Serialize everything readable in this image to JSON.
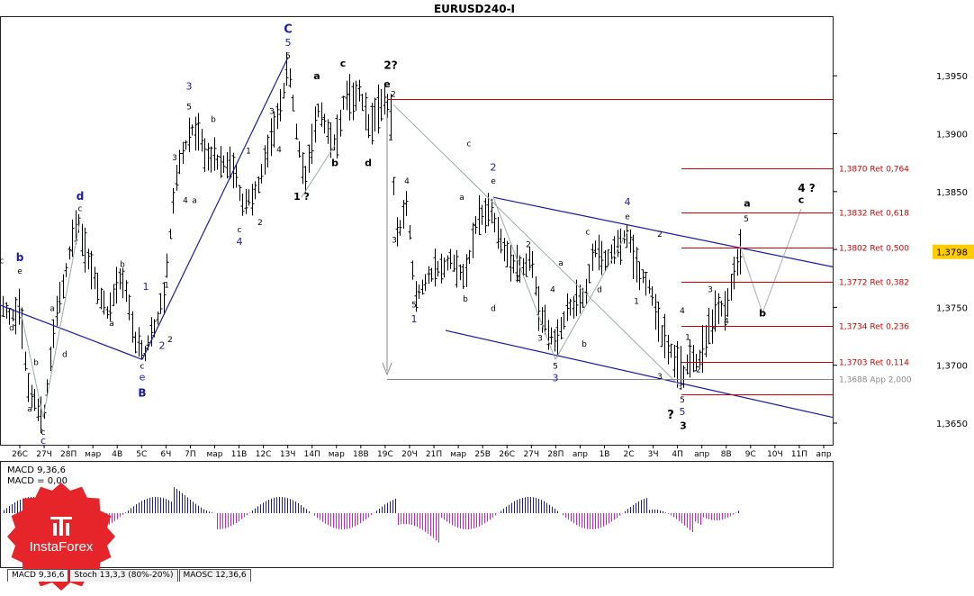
{
  "title": "EURUSD240-I",
  "chart_data": {
    "type": "candlestick",
    "title": "EURUSD240-I",
    "ylim": [
      1.363,
      1.3995
    ],
    "y_ticks": [
      1.365,
      1.37,
      1.375,
      1.38,
      1.385,
      1.39,
      1.395
    ],
    "y_tick_labels": [
      "1,3650",
      "1,3700",
      "1,3750",
      "1,3800",
      "1,3850",
      "1,3900",
      "1,3950"
    ],
    "x_labels": [
      "26С",
      "27Ч",
      "28П",
      "мар",
      "4В",
      "5С",
      "6Ч",
      "7П",
      "мар",
      "11В",
      "12С",
      "13Ч",
      "14П",
      "мар",
      "18В",
      "19С",
      "20Ч",
      "21П",
      "мар",
      "25В",
      "26С",
      "27Ч",
      "28П",
      "апр",
      "1В",
      "2С",
      "3Ч",
      "4П",
      "апр",
      "8В",
      "9С",
      "10Ч",
      "11П",
      "апр"
    ],
    "current_price": 1.3798,
    "current_price_label": "1,3798",
    "fib_levels": [
      {
        "price": 1.393,
        "label": ""
      },
      {
        "price": 1.387,
        "label": "1,3870 Ret 0,764"
      },
      {
        "price": 1.3832,
        "label": "1,3832 Ret 0,618"
      },
      {
        "price": 1.3802,
        "label": "1,3802 Ret 0,500"
      },
      {
        "price": 1.3772,
        "label": "1,3772 Ret 0,382"
      },
      {
        "price": 1.3734,
        "label": "1,3734 Ret 0,236"
      },
      {
        "price": 1.3703,
        "label": "1,3703 Ret 0,114"
      },
      {
        "price": 1.3675,
        "label": ""
      }
    ],
    "app_level": {
      "price": 1.3688,
      "label": "1,3688 App 2,000"
    },
    "wave_labels": [
      {
        "t": "C",
        "x": 320,
        "p": 1.3987,
        "c": "#1a1aa6",
        "s": 13,
        "b": true
      },
      {
        "t": "5",
        "x": 320,
        "p": 1.3976,
        "c": "#1a1aa6",
        "s": 11
      },
      {
        "t": "5",
        "x": 320,
        "p": 1.3965,
        "c": "#000",
        "s": 9
      },
      {
        "t": "3",
        "x": 210,
        "p": 1.3938,
        "c": "#1a1aa6",
        "s": 11
      },
      {
        "t": "5",
        "x": 210,
        "p": 1.3921,
        "c": "#000",
        "s": 9
      },
      {
        "t": "b",
        "x": 237,
        "p": 1.391,
        "c": "#000",
        "s": 9
      },
      {
        "t": "3",
        "x": 194,
        "p": 1.3877,
        "c": "#000",
        "s": 9
      },
      {
        "t": "1",
        "x": 276,
        "p": 1.3883,
        "c": "#000",
        "s": 9
      },
      {
        "t": "3",
        "x": 302,
        "p": 1.3917,
        "c": "#000",
        "s": 9
      },
      {
        "t": "4",
        "x": 310,
        "p": 1.3884,
        "c": "#000",
        "s": 9
      },
      {
        "t": "a",
        "x": 352,
        "p": 1.3947,
        "c": "#000",
        "s": 11,
        "b": true
      },
      {
        "t": "c",
        "x": 381,
        "p": 1.3958,
        "c": "#000",
        "s": 11,
        "b": true
      },
      {
        "t": "b",
        "x": 372,
        "p": 1.3872,
        "c": "#000",
        "s": 11,
        "b": true
      },
      {
        "t": "d",
        "x": 409,
        "p": 1.3872,
        "c": "#000",
        "s": 11,
        "b": true
      },
      {
        "t": "1 ?",
        "x": 335,
        "p": 1.3843,
        "c": "#000",
        "s": 11,
        "b": true
      },
      {
        "t": "2?",
        "x": 434,
        "p": 1.3956,
        "c": "#000",
        "s": 12,
        "b": true
      },
      {
        "t": "e",
        "x": 430,
        "p": 1.394,
        "c": "#000",
        "s": 11,
        "b": true
      },
      {
        "t": "2",
        "x": 437,
        "p": 1.3932,
        "c": "#000",
        "s": 9
      },
      {
        "t": "1",
        "x": 434,
        "p": 1.3894,
        "c": "#000",
        "s": 9
      },
      {
        "t": "4",
        "x": 452,
        "p": 1.3857,
        "c": "#000",
        "s": 9
      },
      {
        "t": "3",
        "x": 438,
        "p": 1.3806,
        "c": "#000",
        "s": 9
      },
      {
        "t": "5",
        "x": 460,
        "p": 1.375,
        "c": "#000",
        "s": 9
      },
      {
        "t": "1",
        "x": 460,
        "p": 1.3737,
        "c": "#1a1aa6",
        "s": 11
      },
      {
        "t": "b",
        "x": 517,
        "p": 1.3755,
        "c": "#000",
        "s": 9
      },
      {
        "t": "c",
        "x": 521,
        "p": 1.3889,
        "c": "#000",
        "s": 9
      },
      {
        "t": "a",
        "x": 513,
        "p": 1.3843,
        "c": "#000",
        "s": 9
      },
      {
        "t": "2",
        "x": 548,
        "p": 1.3868,
        "c": "#1a1aa6",
        "s": 11
      },
      {
        "t": "e",
        "x": 548,
        "p": 1.3857,
        "c": "#000",
        "s": 9
      },
      {
        "t": "d",
        "x": 548,
        "p": 1.3747,
        "c": "#000",
        "s": 9
      },
      {
        "t": "2",
        "x": 587,
        "p": 1.3802,
        "c": "#000",
        "s": 9
      },
      {
        "t": "1",
        "x": 575,
        "p": 1.3773,
        "c": "#000",
        "s": 9
      },
      {
        "t": "4",
        "x": 614,
        "p": 1.3763,
        "c": "#000",
        "s": 9
      },
      {
        "t": "a",
        "x": 623,
        "p": 1.3786,
        "c": "#000",
        "s": 9
      },
      {
        "t": "3",
        "x": 600,
        "p": 1.3721,
        "c": "#000",
        "s": 9
      },
      {
        "t": "5",
        "x": 617,
        "p": 1.3697,
        "c": "#000",
        "s": 9
      },
      {
        "t": "3",
        "x": 617,
        "p": 1.3686,
        "c": "#1a1aa6",
        "s": 11
      },
      {
        "t": "b",
        "x": 649,
        "p": 1.3716,
        "c": "#000",
        "s": 9
      },
      {
        "t": "c",
        "x": 653,
        "p": 1.3813,
        "c": "#000",
        "s": 9
      },
      {
        "t": "d",
        "x": 666,
        "p": 1.3763,
        "c": "#000",
        "s": 9
      },
      {
        "t": "4",
        "x": 697,
        "p": 1.3838,
        "c": "#1a1aa6",
        "s": 11
      },
      {
        "t": "e",
        "x": 697,
        "p": 1.3826,
        "c": "#000",
        "s": 9
      },
      {
        "t": "2",
        "x": 733,
        "p": 1.3811,
        "c": "#000",
        "s": 9
      },
      {
        "t": "1",
        "x": 707,
        "p": 1.3753,
        "c": "#000",
        "s": 9
      },
      {
        "t": "3",
        "x": 733,
        "p": 1.3688,
        "c": "#000",
        "s": 9
      },
      {
        "t": "4",
        "x": 758,
        "p": 1.3745,
        "c": "#000",
        "s": 9
      },
      {
        "t": "5",
        "x": 758,
        "p": 1.3668,
        "c": "#000",
        "s": 9
      },
      {
        "t": "5",
        "x": 758,
        "p": 1.3657,
        "c": "#1a1aa6",
        "s": 11
      },
      {
        "t": "3",
        "x": 759,
        "p": 1.3645,
        "c": "#000",
        "s": 11,
        "b": true
      },
      {
        "t": "?",
        "x": 745,
        "p": 1.3654,
        "c": "#000",
        "s": 13,
        "b": true
      },
      {
        "t": "1",
        "x": 764,
        "p": 1.3722,
        "c": "#000",
        "s": 9
      },
      {
        "t": "2",
        "x": 776,
        "p": 1.3694,
        "c": "#000",
        "s": 9
      },
      {
        "t": "3",
        "x": 789,
        "p": 1.3763,
        "c": "#000",
        "s": 9
      },
      {
        "t": "4",
        "x": 807,
        "p": 1.3736,
        "c": "#000",
        "s": 9
      },
      {
        "t": "a",
        "x": 830,
        "p": 1.3837,
        "c": "#000",
        "s": 11,
        "b": true
      },
      {
        "t": "5",
        "x": 829,
        "p": 1.3824,
        "c": "#000",
        "s": 9
      },
      {
        "t": "b",
        "x": 847,
        "p": 1.3742,
        "c": "#000",
        "s": 11,
        "b": true
      },
      {
        "t": "4 ?",
        "x": 896,
        "p": 1.385,
        "c": "#000",
        "s": 12,
        "b": true
      },
      {
        "t": "c",
        "x": 890,
        "p": 1.384,
        "c": "#000",
        "s": 11,
        "b": true
      },
      {
        "t": "d",
        "x": 89,
        "p": 1.3843,
        "c": "#1a1aa6",
        "s": 12,
        "b": true
      },
      {
        "t": "c",
        "x": 89,
        "p": 1.3833,
        "c": "#000",
        "s": 9
      },
      {
        "t": "b",
        "x": 136,
        "p": 1.3785,
        "c": "#000",
        "s": 9
      },
      {
        "t": "a",
        "x": 124,
        "p": 1.3734,
        "c": "#000",
        "s": 9
      },
      {
        "t": "a",
        "x": 58,
        "p": 1.3747,
        "c": "#000",
        "s": 9
      },
      {
        "t": "b",
        "x": 40,
        "p": 1.37,
        "c": "#000",
        "s": 9
      },
      {
        "t": "d",
        "x": 72,
        "p": 1.3707,
        "c": "#000",
        "s": 9
      },
      {
        "t": "a",
        "x": 33,
        "p": 1.366,
        "c": "#000",
        "s": 9
      },
      {
        "t": "c",
        "x": 48,
        "p": 1.364,
        "c": "#000",
        "s": 9
      },
      {
        "t": "c",
        "x": 48,
        "p": 1.3632,
        "c": "#1a1aa6",
        "s": 11
      },
      {
        "t": "b",
        "x": 22,
        "p": 1.379,
        "c": "#1a1aa6",
        "s": 12,
        "b": true
      },
      {
        "t": "e",
        "x": 22,
        "p": 1.3779,
        "c": "#000",
        "s": 9
      },
      {
        "t": "c",
        "x": 2,
        "p": 1.3788,
        "c": "#000",
        "s": 9
      },
      {
        "t": "d",
        "x": 13,
        "p": 1.373,
        "c": "#000",
        "s": 9
      },
      {
        "t": "1",
        "x": 162,
        "p": 1.3765,
        "c": "#1a1aa6",
        "s": 11
      },
      {
        "t": "1",
        "x": 185,
        "p": 1.3767,
        "c": "#000",
        "s": 9
      },
      {
        "t": "2",
        "x": 180,
        "p": 1.3714,
        "c": "#1a1aa6",
        "s": 11
      },
      {
        "t": "2",
        "x": 189,
        "p": 1.372,
        "c": "#000",
        "s": 9
      },
      {
        "t": "c",
        "x": 158,
        "p": 1.3697,
        "c": "#000",
        "s": 9
      },
      {
        "t": "e",
        "x": 158,
        "p": 1.3687,
        "c": "#1a1aa6",
        "s": 11
      },
      {
        "t": "B",
        "x": 158,
        "p": 1.3673,
        "c": "#1a1aa6",
        "s": 12,
        "b": true
      },
      {
        "t": "4",
        "x": 206,
        "p": 1.384,
        "c": "#000",
        "s": 9
      },
      {
        "t": "a",
        "x": 216,
        "p": 1.384,
        "c": "#000",
        "s": 9
      },
      {
        "t": "c",
        "x": 266,
        "p": 1.3815,
        "c": "#000",
        "s": 9
      },
      {
        "t": "4",
        "x": 266,
        "p": 1.3804,
        "c": "#1a1aa6",
        "s": 11
      },
      {
        "t": "2",
        "x": 289,
        "p": 1.3821,
        "c": "#000",
        "s": 9
      }
    ],
    "indicators": {
      "macd_label_1": "MACD 9,36,6",
      "macd_label_2": "MACD = 0,00"
    }
  },
  "tabs": [
    {
      "label": "MACD 9,36,6",
      "active": true
    },
    {
      "label": "Stoch 13,3,3 (80%-20%)",
      "active": false
    },
    {
      "label": "MAOSC 12,36,6",
      "active": false
    }
  ],
  "logo": {
    "text": "InstaForex",
    "color": "#e5252a"
  },
  "colors": {
    "fib": "#cc0000",
    "channel": "#1a1aa6",
    "macd_pos": "#1a1aa6",
    "macd_neg": "#d81bd8",
    "app": "#888888"
  }
}
